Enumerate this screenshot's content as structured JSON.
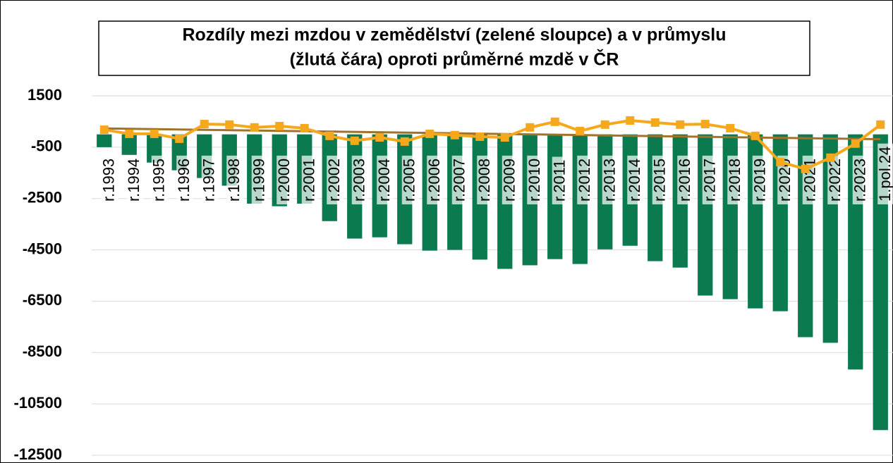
{
  "chart_data": {
    "type": "bar_line",
    "title": [
      "Rozdíly mezi mzdou v zemědělství (zelené sloupce) a v průmyslu",
      "(žlutá čára) oproti průměrné mzdě v ČR"
    ],
    "categories": [
      "r.1993",
      "r.1994",
      "r.1995",
      "r.1996",
      "r.1997",
      "r.1998",
      "r.1999",
      "r.2000",
      "r.2001",
      "r.2002",
      "r.2003",
      "r.2004",
      "r.2005",
      "r.2006",
      "r.2007",
      "r.2008",
      "r.2009",
      "r.2010",
      "r.2011",
      "r.2012",
      "r.2013",
      "r.2014",
      "r.2015",
      "r.2016",
      "r.2017",
      "r.2018",
      "r.2019",
      "r.2020",
      "r.2021",
      "r.2022",
      "r.2023",
      "1.pol.24"
    ],
    "series": [
      {
        "type": "bar",
        "color": "#0b7a4f",
        "values": [
          -500,
          -800,
          -1100,
          -1400,
          -1700,
          -2000,
          -2700,
          -2800,
          -2700,
          -3380,
          -4060,
          -4010,
          -4280,
          -4530,
          -4500,
          -4880,
          -5240,
          -5100,
          -4860,
          -5050,
          -4480,
          -4340,
          -4940,
          -5190,
          -6280,
          -6420,
          -6780,
          -6890,
          -7900,
          -8120,
          -9160,
          -11520
        ]
      },
      {
        "type": "line",
        "color": "#f5a81c",
        "trendline": true,
        "trend_color": "#a0722a",
        "values": [
          180,
          20,
          20,
          -170,
          400,
          380,
          270,
          320,
          240,
          -60,
          -250,
          -120,
          -280,
          20,
          -30,
          -90,
          -120,
          270,
          490,
          130,
          380,
          540,
          460,
          380,
          400,
          240,
          -60,
          -1080,
          -1350,
          -910,
          -360,
          380
        ]
      }
    ],
    "ylim": [
      -12500,
      1500
    ],
    "yticks": [
      1500,
      -500,
      -2500,
      -4500,
      -6500,
      -8500,
      -10500,
      -12500
    ],
    "grid": true
  }
}
